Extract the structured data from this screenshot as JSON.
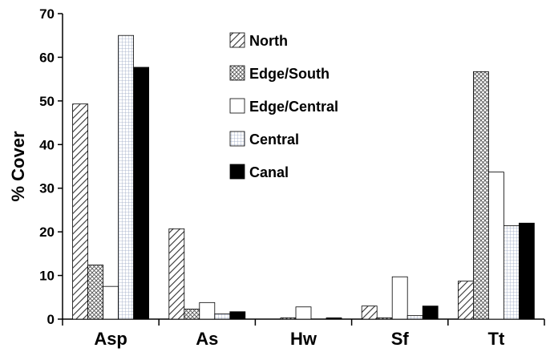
{
  "chart_data": {
    "type": "bar",
    "title": "",
    "xlabel": "",
    "ylabel": "% Cover",
    "ylim": [
      0,
      70
    ],
    "yticks": [
      "0",
      "10",
      "20",
      "30",
      "40",
      "50",
      "60",
      "70"
    ],
    "grid": false,
    "legend_position": "top-center",
    "categories": [
      "Asp",
      "As",
      "Hw",
      "Sf",
      "Tt"
    ],
    "series": [
      {
        "name": "North",
        "pattern": "diagonal-hatch",
        "values": [
          49.3,
          20.7,
          0.0,
          3.0,
          8.7
        ]
      },
      {
        "name": "Edge/South",
        "pattern": "crosshatch-dots",
        "values": [
          12.4,
          2.3,
          0.3,
          0.3,
          56.7
        ]
      },
      {
        "name": "Edge/Central",
        "pattern": "white",
        "values": [
          7.5,
          3.8,
          2.8,
          9.7,
          33.7
        ]
      },
      {
        "name": "Central",
        "pattern": "light-grid",
        "values": [
          65.0,
          1.2,
          0.0,
          0.8,
          21.4
        ]
      },
      {
        "name": "Canal",
        "pattern": "solid-black",
        "values": [
          57.7,
          1.7,
          0.3,
          3.0,
          22.0
        ]
      }
    ]
  }
}
